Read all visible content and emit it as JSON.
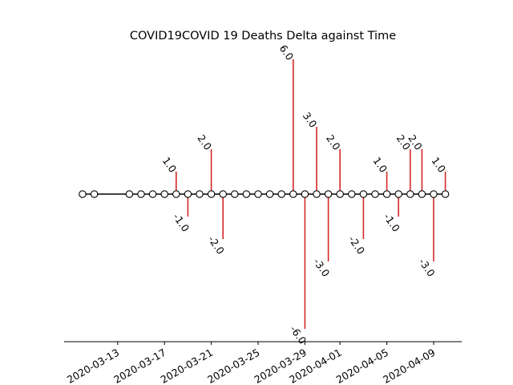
{
  "chart_data": {
    "type": "stem",
    "title": "COVID19COVID 19 Deaths Delta against Time",
    "xlabel": "",
    "ylabel": "",
    "x_tick_labels": [
      "2020-03-13",
      "2020-03-17",
      "2020-03-21",
      "2020-03-25",
      "2020-03-29",
      "2020-04-01",
      "2020-04-05",
      "2020-04-09"
    ],
    "x_tick_dates": [
      "2020-03-13",
      "2020-03-17",
      "2020-03-21",
      "2020-03-25",
      "2020-03-29",
      "2020-04-01",
      "2020-04-05",
      "2020-04-09"
    ],
    "x_range": [
      "2020-03-09",
      "2020-04-11"
    ],
    "y_range": [
      -6.6,
      6.6
    ],
    "grid": false,
    "stem_color": "#d62728",
    "baseline_color": "#000000",
    "marker_face": "#ffffff",
    "marker_edge": "#000000",
    "points": [
      {
        "date": "2020-03-10",
        "value": 0
      },
      {
        "date": "2020-03-11",
        "value": 0
      },
      {
        "date": "2020-03-14",
        "value": 0
      },
      {
        "date": "2020-03-15",
        "value": 0
      },
      {
        "date": "2020-03-16",
        "value": 0
      },
      {
        "date": "2020-03-17",
        "value": 0
      },
      {
        "date": "2020-03-18",
        "value": 1.0,
        "label": "1.0"
      },
      {
        "date": "2020-03-19",
        "value": -1.0,
        "label": "-1.0"
      },
      {
        "date": "2020-03-20",
        "value": 0
      },
      {
        "date": "2020-03-21",
        "value": 2.0,
        "label": "2.0"
      },
      {
        "date": "2020-03-22",
        "value": -2.0,
        "label": "-2.0"
      },
      {
        "date": "2020-03-23",
        "value": 0
      },
      {
        "date": "2020-03-24",
        "value": 0
      },
      {
        "date": "2020-03-25",
        "value": 0
      },
      {
        "date": "2020-03-26",
        "value": 0
      },
      {
        "date": "2020-03-27",
        "value": 0
      },
      {
        "date": "2020-03-28",
        "value": 6.0,
        "label": "6.0"
      },
      {
        "date": "2020-03-29",
        "value": -6.0,
        "label": "-6.0"
      },
      {
        "date": "2020-03-30",
        "value": 3.0,
        "label": "3.0"
      },
      {
        "date": "2020-03-31",
        "value": -3.0,
        "label": "-3.0"
      },
      {
        "date": "2020-04-01",
        "value": 2.0,
        "label": "2.0"
      },
      {
        "date": "2020-04-02",
        "value": 0
      },
      {
        "date": "2020-04-03",
        "value": -2.0,
        "label": "-2.0"
      },
      {
        "date": "2020-04-04",
        "value": 0
      },
      {
        "date": "2020-04-05",
        "value": 1.0,
        "label": "1.0"
      },
      {
        "date": "2020-04-06",
        "value": -1.0,
        "label": "-1.0"
      },
      {
        "date": "2020-04-07",
        "value": 2.0,
        "label": "2.0"
      },
      {
        "date": "2020-04-08",
        "value": 2.0,
        "label": "2.0"
      },
      {
        "date": "2020-04-09",
        "value": -3.0,
        "label": "-3.0"
      },
      {
        "date": "2020-04-10",
        "value": 1.0,
        "label": "1.0"
      }
    ]
  }
}
